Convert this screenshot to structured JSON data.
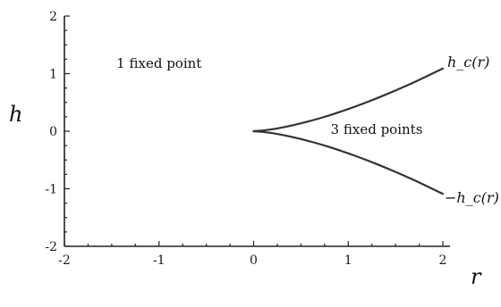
{
  "chart_data": {
    "type": "line",
    "title": "",
    "xlabel": "r",
    "ylabel": "h",
    "xlim": [
      -2,
      2
    ],
    "ylim": [
      -2,
      2
    ],
    "x_ticks": [
      "-2",
      "-1",
      "0",
      "1",
      "2"
    ],
    "y_ticks": [
      "2",
      "1",
      "0",
      "-1",
      "-2"
    ],
    "grid": false,
    "series": [
      {
        "name": "h_c(r)",
        "label_text": "h_c(r)",
        "x": [
          0,
          0.1,
          0.2,
          0.3,
          0.4,
          0.5,
          0.6,
          0.7,
          0.8,
          0.9,
          1.0,
          1.1,
          1.2,
          1.3,
          1.4,
          1.5,
          1.6,
          1.7,
          1.8,
          1.9,
          2.0
        ],
        "y": [
          0,
          0.012,
          0.034,
          0.064,
          0.098,
          0.136,
          0.179,
          0.225,
          0.275,
          0.328,
          0.385,
          0.444,
          0.506,
          0.571,
          0.638,
          0.707,
          0.779,
          0.853,
          0.93,
          1.009,
          1.089
        ]
      },
      {
        "name": "-h_c(r)",
        "label_text": "−h_c(r)",
        "x": [
          0,
          0.1,
          0.2,
          0.3,
          0.4,
          0.5,
          0.6,
          0.7,
          0.8,
          0.9,
          1.0,
          1.1,
          1.2,
          1.3,
          1.4,
          1.5,
          1.6,
          1.7,
          1.8,
          1.9,
          2.0
        ],
        "y": [
          0,
          -0.012,
          -0.034,
          -0.064,
          -0.098,
          -0.136,
          -0.179,
          -0.225,
          -0.275,
          -0.328,
          -0.385,
          -0.444,
          -0.506,
          -0.571,
          -0.638,
          -0.707,
          -0.779,
          -0.853,
          -0.93,
          -1.009,
          -1.089
        ]
      }
    ],
    "annotations": [
      {
        "text": "1 fixed point",
        "x": -1.0,
        "y": 1.1
      },
      {
        "text": "3 fixed points",
        "x": 1.3,
        "y": -0.05
      }
    ]
  }
}
